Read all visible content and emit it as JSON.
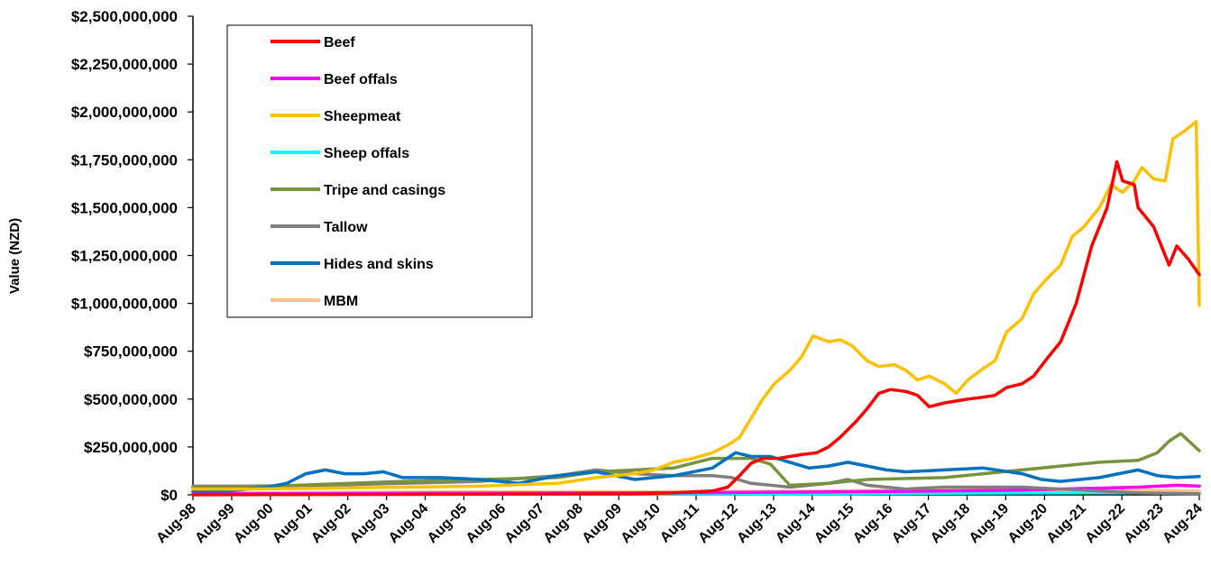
{
  "chart_data": {
    "type": "line",
    "title": "",
    "xlabel": "",
    "ylabel": "Value (NZD)",
    "ylim": [
      0,
      2500000000
    ],
    "y_ticks": [
      0,
      250000000,
      500000000,
      750000000,
      1000000000,
      1250000000,
      1500000000,
      1750000000,
      2000000000,
      2250000000,
      2500000000
    ],
    "y_tick_labels": [
      "$0",
      "$250,000,000",
      "$500,000,000",
      "$750,000,000",
      "$1,000,000,000",
      "$1,250,000,000",
      "$1,500,000,000",
      "$1,750,000,000",
      "$2,000,000,000",
      "$2,250,000,000",
      "$2,500,000,000"
    ],
    "x_tick_labels": [
      "Aug-98",
      "Aug-99",
      "Aug-00",
      "Aug-01",
      "Aug-02",
      "Aug-03",
      "Aug-04",
      "Aug-05",
      "Aug-06",
      "Aug-07",
      "Aug-08",
      "Aug-09",
      "Aug-10",
      "Aug-11",
      "Aug-12",
      "Aug-13",
      "Aug-14",
      "Aug-15",
      "Aug-16",
      "Aug-17",
      "Aug-18",
      "Aug-19",
      "Aug-20",
      "Aug-21",
      "Aug-22",
      "Aug-23",
      "Aug-24"
    ],
    "x_range": [
      1998.58,
      2024.58
    ],
    "grid": false,
    "legend_position": "top-left",
    "series": [
      {
        "name": "Beef",
        "color": "#ff0000",
        "points": [
          [
            1998.58,
            0
          ],
          [
            2010.0,
            5000000
          ],
          [
            2011.0,
            10000000
          ],
          [
            2011.5,
            15000000
          ],
          [
            2012.0,
            20000000
          ],
          [
            2012.4,
            40000000
          ],
          [
            2012.7,
            100000000
          ],
          [
            2013.0,
            165000000
          ],
          [
            2013.3,
            190000000
          ],
          [
            2013.7,
            190000000
          ],
          [
            2014.0,
            200000000
          ],
          [
            2014.3,
            210000000
          ],
          [
            2014.7,
            220000000
          ],
          [
            2015.0,
            250000000
          ],
          [
            2015.3,
            300000000
          ],
          [
            2015.7,
            380000000
          ],
          [
            2016.0,
            450000000
          ],
          [
            2016.3,
            530000000
          ],
          [
            2016.6,
            550000000
          ],
          [
            2017.0,
            540000000
          ],
          [
            2017.3,
            520000000
          ],
          [
            2017.6,
            460000000
          ],
          [
            2018.0,
            480000000
          ],
          [
            2018.3,
            490000000
          ],
          [
            2018.6,
            500000000
          ],
          [
            2019.0,
            510000000
          ],
          [
            2019.3,
            520000000
          ],
          [
            2019.6,
            560000000
          ],
          [
            2020.0,
            580000000
          ],
          [
            2020.3,
            620000000
          ],
          [
            2020.6,
            700000000
          ],
          [
            2021.0,
            800000000
          ],
          [
            2021.4,
            1000000000
          ],
          [
            2021.8,
            1300000000
          ],
          [
            2022.2,
            1500000000
          ],
          [
            2022.45,
            1740000000
          ],
          [
            2022.6,
            1640000000
          ],
          [
            2022.9,
            1620000000
          ],
          [
            2023.0,
            1500000000
          ],
          [
            2023.4,
            1400000000
          ],
          [
            2023.8,
            1200000000
          ],
          [
            2024.0,
            1300000000
          ],
          [
            2024.3,
            1230000000
          ],
          [
            2024.58,
            1150000000
          ]
        ]
      },
      {
        "name": "Beef offals",
        "color": "#ff00ff",
        "points": [
          [
            1998.58,
            5000000
          ],
          [
            2005.0,
            8000000
          ],
          [
            2010.0,
            10000000
          ],
          [
            2015.0,
            15000000
          ],
          [
            2018.0,
            20000000
          ],
          [
            2020.0,
            25000000
          ],
          [
            2021.0,
            30000000
          ],
          [
            2022.0,
            35000000
          ],
          [
            2023.0,
            40000000
          ],
          [
            2024.0,
            50000000
          ],
          [
            2024.58,
            45000000
          ]
        ]
      },
      {
        "name": "Sheepmeat",
        "color": "#ffc000",
        "points": [
          [
            1998.58,
            30000000
          ],
          [
            2000.0,
            30000000
          ],
          [
            2002.0,
            35000000
          ],
          [
            2004.0,
            40000000
          ],
          [
            2006.0,
            45000000
          ],
          [
            2008.0,
            60000000
          ],
          [
            2009.0,
            90000000
          ],
          [
            2010.0,
            110000000
          ],
          [
            2010.5,
            130000000
          ],
          [
            2011.0,
            170000000
          ],
          [
            2011.5,
            190000000
          ],
          [
            2012.0,
            220000000
          ],
          [
            2012.4,
            260000000
          ],
          [
            2012.7,
            300000000
          ],
          [
            2013.0,
            400000000
          ],
          [
            2013.3,
            500000000
          ],
          [
            2013.6,
            580000000
          ],
          [
            2014.0,
            650000000
          ],
          [
            2014.3,
            720000000
          ],
          [
            2014.6,
            830000000
          ],
          [
            2015.0,
            800000000
          ],
          [
            2015.3,
            810000000
          ],
          [
            2015.6,
            780000000
          ],
          [
            2016.0,
            700000000
          ],
          [
            2016.3,
            670000000
          ],
          [
            2016.7,
            680000000
          ],
          [
            2017.0,
            650000000
          ],
          [
            2017.3,
            600000000
          ],
          [
            2017.6,
            620000000
          ],
          [
            2018.0,
            580000000
          ],
          [
            2018.3,
            530000000
          ],
          [
            2018.6,
            600000000
          ],
          [
            2019.0,
            660000000
          ],
          [
            2019.3,
            700000000
          ],
          [
            2019.6,
            850000000
          ],
          [
            2020.0,
            920000000
          ],
          [
            2020.3,
            1050000000
          ],
          [
            2020.6,
            1120000000
          ],
          [
            2021.0,
            1200000000
          ],
          [
            2021.3,
            1350000000
          ],
          [
            2021.6,
            1400000000
          ],
          [
            2022.0,
            1500000000
          ],
          [
            2022.3,
            1620000000
          ],
          [
            2022.6,
            1580000000
          ],
          [
            2022.9,
            1640000000
          ],
          [
            2023.1,
            1710000000
          ],
          [
            2023.4,
            1650000000
          ],
          [
            2023.7,
            1640000000
          ],
          [
            2023.9,
            1860000000
          ],
          [
            2024.2,
            1900000000
          ],
          [
            2024.5,
            1950000000
          ],
          [
            2024.58,
            990000000
          ]
        ]
      },
      {
        "name": "Sheep offals",
        "color": "#00ffff",
        "points": [
          [
            1998.58,
            3000000
          ],
          [
            2005.0,
            4000000
          ],
          [
            2010.0,
            5000000
          ],
          [
            2015.0,
            6000000
          ],
          [
            2020.0,
            10000000
          ],
          [
            2024.58,
            12000000
          ]
        ]
      },
      {
        "name": "Tripe and casings",
        "color": "#77933c",
        "points": [
          [
            1998.58,
            40000000
          ],
          [
            2000.0,
            40000000
          ],
          [
            2002.0,
            55000000
          ],
          [
            2004.0,
            70000000
          ],
          [
            2006.0,
            80000000
          ],
          [
            2008.0,
            90000000
          ],
          [
            2009.0,
            120000000
          ],
          [
            2010.0,
            130000000
          ],
          [
            2011.0,
            140000000
          ],
          [
            2012.0,
            190000000
          ],
          [
            2013.0,
            190000000
          ],
          [
            2013.5,
            160000000
          ],
          [
            2014.0,
            50000000
          ],
          [
            2015.0,
            60000000
          ],
          [
            2016.0,
            80000000
          ],
          [
            2018.0,
            90000000
          ],
          [
            2020.0,
            130000000
          ],
          [
            2021.0,
            150000000
          ],
          [
            2022.0,
            170000000
          ],
          [
            2023.0,
            180000000
          ],
          [
            2023.5,
            220000000
          ],
          [
            2023.8,
            280000000
          ],
          [
            2024.1,
            320000000
          ],
          [
            2024.58,
            230000000
          ]
        ]
      },
      {
        "name": "Tallow",
        "color": "#7f7f7f",
        "points": [
          [
            1998.58,
            45000000
          ],
          [
            2000.0,
            45000000
          ],
          [
            2002.0,
            50000000
          ],
          [
            2004.0,
            60000000
          ],
          [
            2006.0,
            70000000
          ],
          [
            2008.0,
            100000000
          ],
          [
            2009.0,
            130000000
          ],
          [
            2010.0,
            110000000
          ],
          [
            2011.0,
            100000000
          ],
          [
            2012.0,
            100000000
          ],
          [
            2012.5,
            90000000
          ],
          [
            2013.0,
            60000000
          ],
          [
            2014.0,
            40000000
          ],
          [
            2015.0,
            60000000
          ],
          [
            2015.5,
            80000000
          ],
          [
            2016.0,
            50000000
          ],
          [
            2017.0,
            30000000
          ],
          [
            2018.0,
            40000000
          ],
          [
            2020.0,
            40000000
          ],
          [
            2021.0,
            30000000
          ],
          [
            2022.0,
            20000000
          ],
          [
            2023.0,
            10000000
          ],
          [
            2024.58,
            5000000
          ]
        ]
      },
      {
        "name": "Hides and skins",
        "color": "#0070c0",
        "points": [
          [
            1998.58,
            20000000
          ],
          [
            1999.5,
            20000000
          ],
          [
            2000.5,
            40000000
          ],
          [
            2001.0,
            60000000
          ],
          [
            2001.5,
            110000000
          ],
          [
            2002.0,
            130000000
          ],
          [
            2002.5,
            110000000
          ],
          [
            2003.0,
            110000000
          ],
          [
            2003.5,
            120000000
          ],
          [
            2004.0,
            90000000
          ],
          [
            2005.0,
            90000000
          ],
          [
            2006.0,
            80000000
          ],
          [
            2007.0,
            60000000
          ],
          [
            2008.0,
            100000000
          ],
          [
            2009.0,
            120000000
          ],
          [
            2010.0,
            80000000
          ],
          [
            2011.0,
            100000000
          ],
          [
            2012.0,
            140000000
          ],
          [
            2012.6,
            220000000
          ],
          [
            2013.0,
            200000000
          ],
          [
            2013.5,
            200000000
          ],
          [
            2014.0,
            170000000
          ],
          [
            2014.5,
            140000000
          ],
          [
            2015.0,
            150000000
          ],
          [
            2015.5,
            170000000
          ],
          [
            2016.0,
            150000000
          ],
          [
            2016.5,
            130000000
          ],
          [
            2017.0,
            120000000
          ],
          [
            2018.0,
            130000000
          ],
          [
            2019.0,
            140000000
          ],
          [
            2020.0,
            110000000
          ],
          [
            2020.5,
            80000000
          ],
          [
            2021.0,
            70000000
          ],
          [
            2022.0,
            90000000
          ],
          [
            2023.0,
            130000000
          ],
          [
            2023.5,
            100000000
          ],
          [
            2024.0,
            90000000
          ],
          [
            2024.58,
            95000000
          ]
        ]
      },
      {
        "name": "MBM",
        "color": "#fac090",
        "points": [
          [
            1998.58,
            10000000
          ],
          [
            2005.0,
            15000000
          ],
          [
            2010.0,
            15000000
          ],
          [
            2015.0,
            20000000
          ],
          [
            2020.0,
            30000000
          ],
          [
            2022.0,
            20000000
          ],
          [
            2023.0,
            25000000
          ],
          [
            2024.58,
            20000000
          ]
        ]
      }
    ]
  }
}
